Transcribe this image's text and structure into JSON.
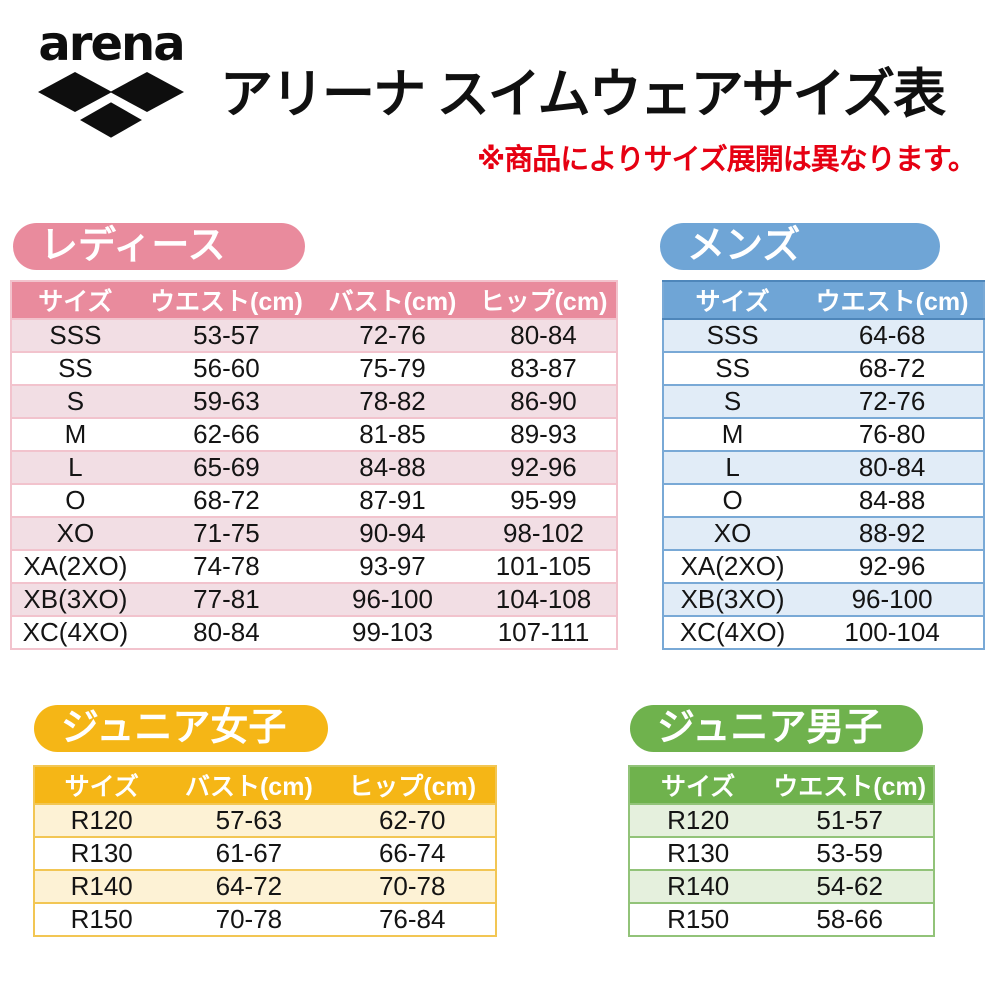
{
  "header": {
    "brand": "arena",
    "title": "アリーナ スイムウェアサイズ表",
    "note": "※商品によりサイズ展開は異なります。",
    "note_color": "#e60012"
  },
  "tables": {
    "ladies": {
      "label": "レディース",
      "accent": "#e98b9d",
      "shade": "#f2dee4",
      "border": "#f2c3cd",
      "columns": [
        "サイズ",
        "ウエスト(cm)",
        "バスト(cm)",
        "ヒップ(cm)"
      ],
      "rows": [
        [
          "SSS",
          "53-57",
          "72-76",
          "80-84"
        ],
        [
          "SS",
          "56-60",
          "75-79",
          "83-87"
        ],
        [
          "S",
          "59-63",
          "78-82",
          "86-90"
        ],
        [
          "M",
          "62-66",
          "81-85",
          "89-93"
        ],
        [
          "L",
          "65-69",
          "84-88",
          "92-96"
        ],
        [
          "O",
          "68-72",
          "87-91",
          "95-99"
        ],
        [
          "XO",
          "71-75",
          "90-94",
          "98-102"
        ],
        [
          "XA(2XO)",
          "74-78",
          "93-97",
          "101-105"
        ],
        [
          "XB(3XO)",
          "77-81",
          "96-100",
          "104-108"
        ],
        [
          "XC(4XO)",
          "80-84",
          "99-103",
          "107-111"
        ]
      ]
    },
    "mens": {
      "label": "メンズ",
      "accent": "#6fa5d6",
      "shade": "#e1ecf7",
      "border": "#79a9d6",
      "columns": [
        "サイズ",
        "ウエスト(cm)"
      ],
      "rows": [
        [
          "SSS",
          "64-68"
        ],
        [
          "SS",
          "68-72"
        ],
        [
          "S",
          "72-76"
        ],
        [
          "M",
          "76-80"
        ],
        [
          "L",
          "80-84"
        ],
        [
          "O",
          "84-88"
        ],
        [
          "XO",
          "88-92"
        ],
        [
          "XA(2XO)",
          "92-96"
        ],
        [
          "XB(3XO)",
          "96-100"
        ],
        [
          "XC(4XO)",
          "100-104"
        ]
      ]
    },
    "junior_girls": {
      "label": "ジュニア女子",
      "accent": "#f5b616",
      "shade": "#fdf2d5",
      "border": "#f2c654",
      "columns": [
        "サイズ",
        "バスト(cm)",
        "ヒップ(cm)"
      ],
      "rows": [
        [
          "R120",
          "57-63",
          "62-70"
        ],
        [
          "R130",
          "61-67",
          "66-74"
        ],
        [
          "R140",
          "64-72",
          "70-78"
        ],
        [
          "R150",
          "70-78",
          "76-84"
        ]
      ]
    },
    "junior_boys": {
      "label": "ジュニア男子",
      "accent": "#6fb24d",
      "shade": "#e5f0dd",
      "border": "#92c379",
      "columns": [
        "サイズ",
        "ウエスト(cm)"
      ],
      "rows": [
        [
          "R120",
          "51-57"
        ],
        [
          "R130",
          "53-59"
        ],
        [
          "R140",
          "54-62"
        ],
        [
          "R150",
          "58-66"
        ]
      ]
    }
  }
}
